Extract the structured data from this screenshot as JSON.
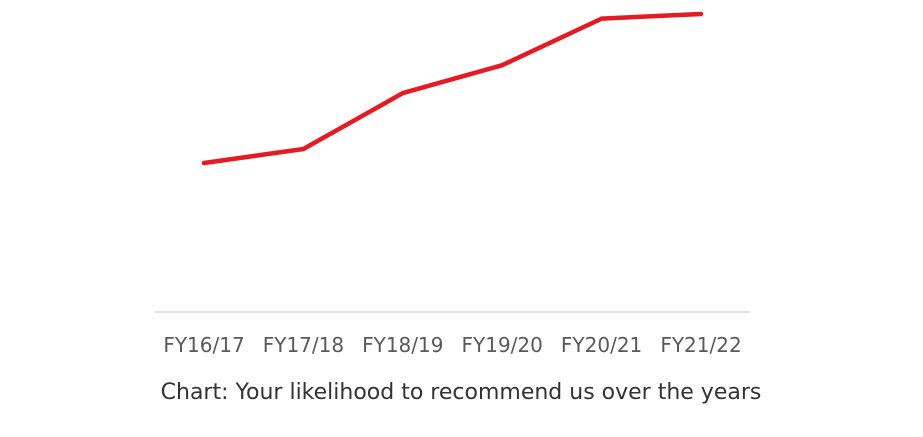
{
  "chart_data": {
    "type": "line",
    "title": "",
    "caption": "Chart: Your likelihood to recommend us over the years",
    "xlabel": "",
    "ylabel": "",
    "categories": [
      "FY16/17",
      "FY17/18",
      "FY18/19",
      "FY19/20",
      "FY20/21",
      "FY21/22"
    ],
    "series": [
      {
        "values": [
          32,
          35,
          47,
          53,
          63,
          64
        ]
      }
    ],
    "ylim": [
      0,
      67
    ],
    "grid": false,
    "legend": "none",
    "colors": {
      "line": "#e31b23",
      "axis": "#d9d9d9",
      "tick_text": "#595959",
      "caption_text": "#333333"
    }
  }
}
